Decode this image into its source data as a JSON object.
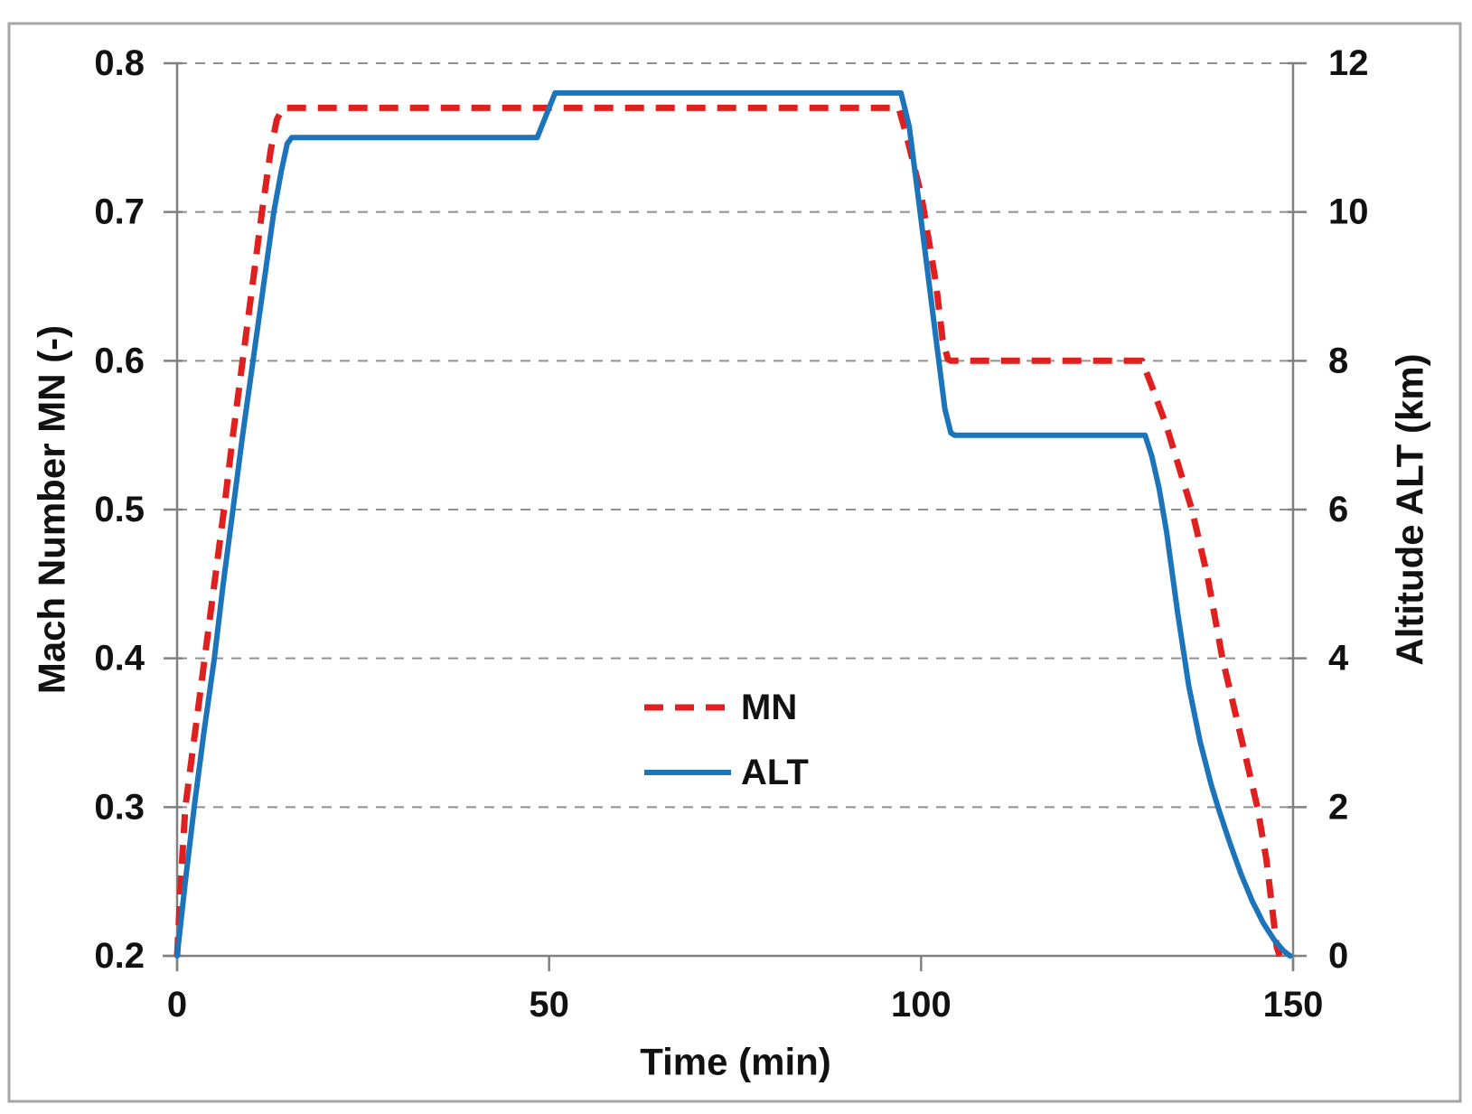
{
  "figure": {
    "background": "#ffffff",
    "border_color": "#a6a6a6",
    "axis_color": "#808080",
    "grid_color": "#909090",
    "text_color": "#111111"
  },
  "chart_data": {
    "type": "line",
    "title": "",
    "xlabel": "Time (min)",
    "xlim": [
      0,
      150
    ],
    "x_ticks": [
      "0",
      "50",
      "100",
      "150"
    ],
    "grid": true,
    "left_axis": {
      "label": "Mach Number MN (-)",
      "lim": [
        0.2,
        0.8
      ],
      "ticks": [
        "0.8",
        "0.7",
        "0.6",
        "0.5",
        "0.4",
        "0.3",
        "0.2"
      ]
    },
    "right_axis": {
      "label": "Altitude ALT (km)",
      "lim": [
        0,
        12
      ],
      "ticks": [
        "12",
        "10",
        "8",
        "6",
        "4",
        "2",
        "0"
      ]
    },
    "legend": {
      "position": "center",
      "entries": [
        {
          "name": "MN",
          "color": "#e0201f",
          "style": "dashed"
        },
        {
          "name": "ALT",
          "color": "#1c74ba",
          "style": "solid"
        }
      ]
    },
    "series": [
      {
        "name": "MN",
        "axis": "left",
        "color": "#e0201f",
        "style": "dashed",
        "points": [
          [
            0,
            0.2
          ],
          [
            0.5,
            0.25
          ],
          [
            1.1,
            0.3
          ],
          [
            2.4,
            0.35
          ],
          [
            3.7,
            0.4
          ],
          [
            5.0,
            0.45
          ],
          [
            6.3,
            0.5
          ],
          [
            7.5,
            0.55
          ],
          [
            8.8,
            0.6
          ],
          [
            10.1,
            0.65
          ],
          [
            11.4,
            0.7
          ],
          [
            12.6,
            0.742
          ],
          [
            13.4,
            0.762
          ],
          [
            14.2,
            0.77
          ],
          [
            97.0,
            0.77
          ],
          [
            98.0,
            0.752
          ],
          [
            100.0,
            0.712
          ],
          [
            102.0,
            0.652
          ],
          [
            102.9,
            0.614
          ],
          [
            103.6,
            0.601
          ],
          [
            104.0,
            0.6
          ],
          [
            129.7,
            0.6
          ],
          [
            131.0,
            0.583
          ],
          [
            133.0,
            0.556
          ],
          [
            136.4,
            0.5
          ],
          [
            138.5,
            0.455
          ],
          [
            140.5,
            0.4
          ],
          [
            143.0,
            0.347
          ],
          [
            145.2,
            0.3
          ],
          [
            146.4,
            0.265
          ],
          [
            147.2,
            0.232
          ],
          [
            147.8,
            0.206
          ],
          [
            148.2,
            0.2
          ]
        ]
      },
      {
        "name": "ALT",
        "axis": "right",
        "color": "#1c74ba",
        "style": "solid",
        "points": [
          [
            0,
            0
          ],
          [
            1.1,
            1.0
          ],
          [
            2.3,
            2.0
          ],
          [
            3.6,
            3.0
          ],
          [
            5.0,
            4.0
          ],
          [
            6.2,
            5.0
          ],
          [
            7.5,
            6.0
          ],
          [
            8.8,
            7.0
          ],
          [
            10.2,
            8.0
          ],
          [
            11.6,
            9.0
          ],
          [
            13.0,
            10.0
          ],
          [
            14.0,
            10.55
          ],
          [
            14.8,
            10.92
          ],
          [
            15.4,
            11.0
          ],
          [
            48.4,
            11.0
          ],
          [
            50.8,
            11.6
          ],
          [
            97.3,
            11.6
          ],
          [
            98.4,
            11.15
          ],
          [
            100.0,
            9.9
          ],
          [
            102.0,
            8.3
          ],
          [
            103.2,
            7.35
          ],
          [
            104.0,
            7.03
          ],
          [
            104.5,
            7.0
          ],
          [
            130.1,
            7.0
          ],
          [
            131.0,
            6.72
          ],
          [
            132.0,
            6.28
          ],
          [
            133.0,
            5.7
          ],
          [
            134.5,
            4.6
          ],
          [
            136.0,
            3.62
          ],
          [
            137.5,
            2.88
          ],
          [
            139.0,
            2.3
          ],
          [
            140.0,
            1.97
          ],
          [
            141.5,
            1.52
          ],
          [
            143.0,
            1.1
          ],
          [
            144.5,
            0.74
          ],
          [
            146.0,
            0.44
          ],
          [
            147.5,
            0.21
          ],
          [
            148.7,
            0.07
          ],
          [
            149.6,
            0.0
          ]
        ]
      }
    ]
  }
}
